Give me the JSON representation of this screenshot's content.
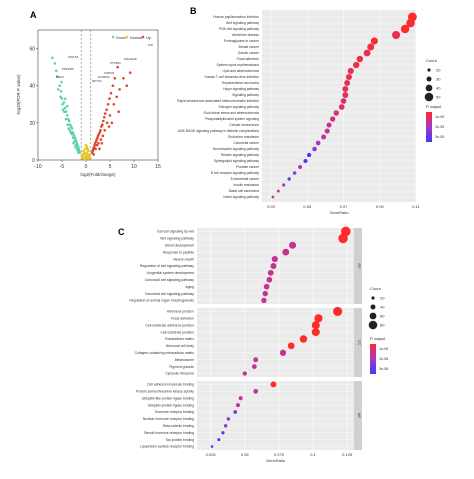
{
  "panels": {
    "a": {
      "letter": "A"
    },
    "b": {
      "letter": "B"
    },
    "c": {
      "letter": "C"
    }
  },
  "chart_data": [
    {
      "type": "scatter",
      "panel": "A",
      "title": "",
      "xlabel": "log2(Foldchange)",
      "ylabel": "-log10(FDR P value)",
      "xlim": [
        -10,
        15
      ],
      "ylim": [
        0,
        70
      ],
      "xticks": [
        -10,
        -5,
        0,
        5,
        10,
        15
      ],
      "yticks": [
        0,
        20,
        40,
        60
      ],
      "legend": [
        "Down",
        "Normal",
        "Up"
      ],
      "legend_position": "top-right",
      "threshold_lines": [
        -1,
        1
      ],
      "colors": {
        "down": "#5fd3a8",
        "normal": "#e6c62a",
        "up": "#e0452a"
      },
      "series": [
        {
          "name": "Down",
          "color": "#5fd3a8",
          "points": [
            [
              -6.5,
              52
            ],
            [
              -6.0,
              45
            ],
            [
              -5.5,
              40
            ],
            [
              -5.2,
              37
            ],
            [
              -5.0,
              33
            ],
            [
              -4.6,
              31
            ],
            [
              -4.4,
              28
            ],
            [
              -4.1,
              26
            ],
            [
              -3.9,
              24
            ],
            [
              -3.7,
              22
            ],
            [
              -3.5,
              21
            ],
            [
              -3.3,
              19
            ],
            [
              -3.1,
              18
            ],
            [
              -2.9,
              17
            ],
            [
              -2.8,
              15
            ],
            [
              -2.6,
              14
            ],
            [
              -2.5,
              13
            ],
            [
              -2.3,
              12
            ],
            [
              -2.2,
              11
            ],
            [
              -2.0,
              10
            ],
            [
              -1.9,
              9
            ],
            [
              -1.8,
              8
            ],
            [
              -1.6,
              7
            ],
            [
              -1.5,
              6
            ],
            [
              -1.4,
              5
            ],
            [
              -1.3,
              4
            ],
            [
              -4.8,
              27
            ],
            [
              -4.2,
              22
            ],
            [
              -3.8,
              19
            ],
            [
              -3.4,
              16
            ],
            [
              -3.0,
              14
            ],
            [
              -2.7,
              12
            ],
            [
              -2.4,
              10
            ],
            [
              -2.1,
              8
            ],
            [
              -1.9,
              6
            ],
            [
              -1.7,
              5
            ],
            [
              -5.8,
              38
            ],
            [
              -5.3,
              34
            ],
            [
              -4.9,
              30
            ],
            [
              -4.5,
              26
            ],
            [
              -3.6,
              17
            ],
            [
              -3.2,
              15
            ],
            [
              -2.6,
              9
            ],
            [
              -2.2,
              7
            ],
            [
              -1.6,
              4
            ],
            [
              -3.9,
              29
            ],
            [
              -4.3,
              33
            ],
            [
              -5.1,
              42
            ],
            [
              -6.2,
              48
            ],
            [
              -7.0,
              55
            ]
          ]
        },
        {
          "name": "Normal",
          "color": "#e6c62a",
          "points": [
            [
              -0.8,
              3
            ],
            [
              -0.6,
              2
            ],
            [
              -0.5,
              5
            ],
            [
              -0.3,
              1
            ],
            [
              -0.2,
              3
            ],
            [
              0.0,
              2
            ],
            [
              0.1,
              4
            ],
            [
              0.2,
              1
            ],
            [
              0.3,
              2
            ],
            [
              0.4,
              3
            ],
            [
              0.5,
              5
            ],
            [
              0.6,
              2
            ],
            [
              0.7,
              1
            ],
            [
              0.8,
              3
            ],
            [
              -0.7,
              1
            ],
            [
              -0.4,
              4
            ],
            [
              -0.1,
              6
            ],
            [
              0.0,
              8
            ],
            [
              0.2,
              7
            ],
            [
              0.35,
              6
            ],
            [
              -0.9,
              2
            ],
            [
              0.9,
              1
            ],
            [
              -0.25,
              0.5
            ],
            [
              0.45,
              0.8
            ],
            [
              0.15,
              1.5
            ]
          ]
        },
        {
          "name": "Up",
          "color": "#e0452a",
          "points": [
            [
              1.3,
              4
            ],
            [
              1.4,
              5
            ],
            [
              1.5,
              6
            ],
            [
              1.7,
              7
            ],
            [
              1.8,
              8
            ],
            [
              1.9,
              9
            ],
            [
              2.1,
              10
            ],
            [
              2.2,
              11
            ],
            [
              2.4,
              12
            ],
            [
              2.5,
              13
            ],
            [
              2.7,
              14
            ],
            [
              2.9,
              15
            ],
            [
              3.0,
              16
            ],
            [
              3.2,
              18
            ],
            [
              3.4,
              19
            ],
            [
              3.6,
              21
            ],
            [
              3.8,
              23
            ],
            [
              4.0,
              25
            ],
            [
              4.3,
              27
            ],
            [
              4.6,
              30
            ],
            [
              4.9,
              33
            ],
            [
              5.2,
              36
            ],
            [
              5.6,
              40
            ],
            [
              6.0,
              44
            ],
            [
              6.6,
              50
            ],
            [
              2.0,
              6
            ],
            [
              2.3,
              8
            ],
            [
              2.6,
              9
            ],
            [
              3.1,
              11
            ],
            [
              3.5,
              13
            ],
            [
              3.9,
              16
            ],
            [
              4.4,
              20
            ],
            [
              5.0,
              24
            ],
            [
              5.8,
              30
            ],
            [
              6.4,
              34
            ],
            [
              7.0,
              38
            ],
            [
              7.8,
              44
            ],
            [
              8.5,
              40
            ],
            [
              9.2,
              47
            ],
            [
              4.8,
              18
            ],
            [
              3.3,
              9
            ],
            [
              2.8,
              6
            ],
            [
              1.6,
              3
            ],
            [
              6.8,
              26
            ],
            [
              5.4,
              20
            ]
          ]
        }
      ],
      "annotations": [
        "C/P",
        "MAGEA8",
        "PTPRM",
        "CSPG5",
        "HOXB13",
        "NPTX2",
        "WNT5A",
        "PPAP2B",
        "NEK2"
      ]
    },
    {
      "type": "scatter",
      "panel": "B",
      "title": "",
      "xlabel": "GeneRatio",
      "ylabel": "",
      "xlim": [
        0.025,
        0.11
      ],
      "xticks": [
        0.03,
        0.05,
        0.07,
        0.09,
        0.11
      ],
      "categories": [
        "Human papillomavirus infection",
        "Wnt signaling pathway",
        "PI3K-Akt signaling pathway",
        "Alzheimer disease",
        "Proteoglycans in cancer",
        "Breast cancer",
        "Gastric cancer",
        "Focal adhesion",
        "System lupus erythematosus",
        "Lipid and atherosclerosis",
        "Human T-cell leukemia virus infection",
        "Hepatocellular carcinoma",
        "Hippo signaling pathway",
        "Signaling pathway",
        "Rapid senescence-associated heterochromatin infection",
        "Estrogen signaling pathway",
        "Fluid shear stress and atherosclerosis",
        "Phosphatidylinositol system signaling",
        "Cellular senescence",
        "AGE-RAGE signaling pathway in diabetic complications",
        "Endocrine resistance",
        "Colorectal cancer",
        "Neurotrophin signaling pathway",
        "Relaxin signaling pathway",
        "Sphingolipid signaling pathway",
        "Prostate cancer",
        "B cell receptor signaling pathway",
        "Endometrial cancer",
        "Insulin resistance",
        "Basal cell carcinoma",
        "Notch signaling pathway"
      ],
      "values": [
        0.108,
        0.107,
        0.104,
        0.099,
        0.087,
        0.085,
        0.083,
        0.079,
        0.077,
        0.074,
        0.073,
        0.072,
        0.071,
        0.071,
        0.07,
        0.069,
        0.066,
        0.064,
        0.062,
        0.061,
        0.059,
        0.056,
        0.054,
        0.051,
        0.049,
        0.046,
        0.043,
        0.04,
        0.037,
        0.034,
        0.031
      ],
      "counts": [
        58,
        56,
        55,
        52,
        46,
        45,
        44,
        42,
        41,
        40,
        39,
        38,
        38,
        38,
        37,
        37,
        35,
        34,
        33,
        33,
        32,
        30,
        29,
        28,
        26,
        25,
        23,
        22,
        20,
        18,
        17
      ],
      "p_adjust": [
        0.0005,
        0.0006,
        0.0005,
        0.0008,
        0.0006,
        0.0007,
        0.0008,
        0.0006,
        0.0008,
        0.0009,
        0.0008,
        0.0009,
        0.0008,
        0.0009,
        0.0009,
        0.001,
        0.0011,
        0.0012,
        0.0013,
        0.0013,
        0.0014,
        0.0016,
        0.002,
        0.003,
        0.0028,
        0.0015,
        0.002,
        0.0022,
        0.0018,
        0.0012,
        0.0015
      ],
      "legend": {
        "size_title": "Count",
        "size_values": [
          20,
          30,
          40,
          50
        ],
        "color_title": "P. adjust",
        "color_labels": [
          "1e-05",
          "2e-05",
          "3e-05"
        ]
      }
    },
    {
      "type": "scatter",
      "panel": "C",
      "title": "",
      "xlabel": "GeneRatio",
      "ylabel": "",
      "xlim": [
        0.015,
        0.13
      ],
      "xticks": [
        0.025,
        0.05,
        0.075,
        0.1,
        0.125
      ],
      "facets": [
        {
          "name": "BP",
          "categories": [
            "Cell-cell signaling by wnt",
            "Wnt signaling pathway",
            "Gland development",
            "Response to peptide",
            "Neuron death",
            "Regulation of wnt signaling pathway",
            "Urogenital system development",
            "Canonical wnt signaling pathway",
            "Aging",
            "Canonical wnt signaling pathway",
            "Regulation of animal organ morphogenesis"
          ],
          "values": [
            0.124,
            0.122,
            0.085,
            0.08,
            0.072,
            0.071,
            0.069,
            0.068,
            0.066,
            0.065,
            0.064
          ],
          "counts": [
            58,
            57,
            42,
            40,
            36,
            35,
            34,
            33,
            33,
            32,
            31
          ],
          "p_adjust": [
            1e-08,
            1e-08,
            2e-08,
            2e-08,
            2e-08,
            2e-08,
            2e-08,
            2e-08,
            2e-08,
            2e-08,
            2e-08
          ]
        },
        {
          "name": "CC",
          "categories": [
            "Adherens junction",
            "Focal adhesion",
            "Cell-substrate adherens junction",
            "Cell-substrate junction",
            "Extracellular matrix",
            "Neuronal cell body",
            "Collagen-containing extracellular matrix",
            "Melanosome",
            "Pigment granule",
            "Cytosolic ribosome"
          ],
          "values": [
            0.118,
            0.104,
            0.102,
            0.102,
            0.093,
            0.084,
            0.078,
            0.058,
            0.057,
            0.05
          ],
          "counts": [
            55,
            49,
            48,
            48,
            44,
            40,
            37,
            28,
            27,
            24
          ],
          "p_adjust": [
            1e-08,
            1e-08,
            1e-08,
            1e-08,
            1e-08,
            1e-08,
            2e-08,
            2e-08,
            2e-08,
            2e-08
          ]
        },
        {
          "name": "MF",
          "categories": [
            "Cell adhesion molecule binding",
            "Protein serine/threonine kinase activity",
            "Ubiquitin-like protein ligase binding",
            "Ubiquitin-protein ligase binding",
            "Hormone receptor binding",
            "Nuclear hormone receptor binding",
            "Beta-catenin binding",
            "Steroid hormone receptor binding",
            "Tau protein binding",
            "Lipoprotein particle receptor binding"
          ],
          "values": [
            0.071,
            0.058,
            0.047,
            0.045,
            0.043,
            0.038,
            0.036,
            0.034,
            0.031,
            0.026
          ],
          "counts": [
            34,
            27,
            23,
            22,
            21,
            19,
            18,
            17,
            16,
            14
          ],
          "p_adjust": [
            1e-08,
            2e-08,
            2e-08,
            2e-08,
            3e-08,
            3e-08,
            3e-08,
            4e-08,
            4e-08,
            3.5e-08
          ]
        }
      ],
      "legend": {
        "size_title": "Count",
        "size_values": [
          20,
          40,
          60,
          80
        ],
        "color_title": "P. adjust",
        "color_labels": [
          "1e-08",
          "2e-08",
          "3e-08"
        ]
      }
    }
  ]
}
